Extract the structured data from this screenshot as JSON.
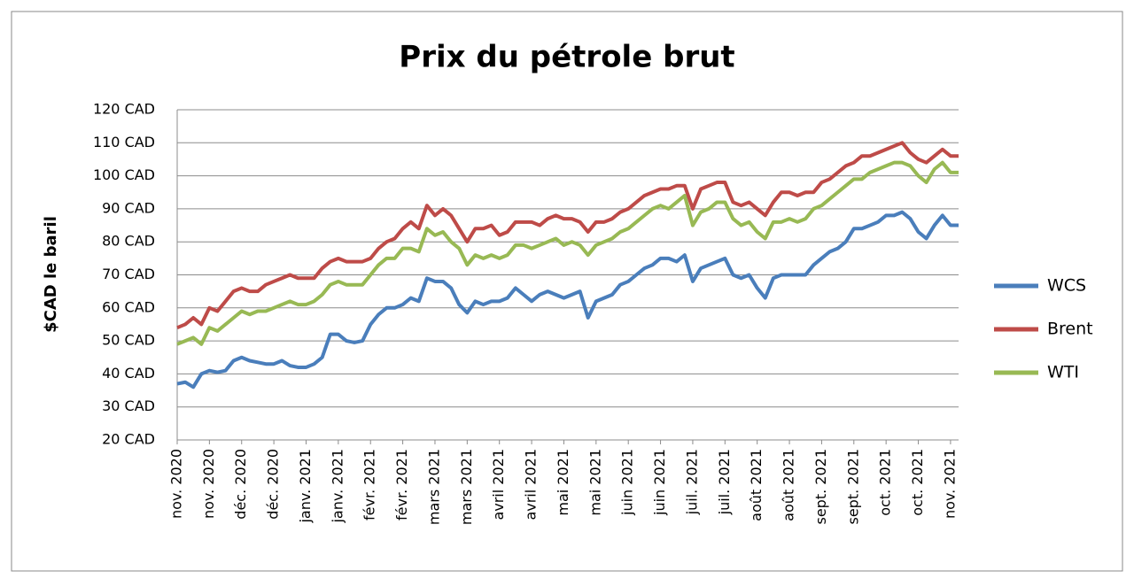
{
  "chart_data": {
    "type": "line",
    "title": "Prix du pétrole brut",
    "y_label": "$CAD le baril",
    "categories": [
      "nov. 2020",
      null,
      null,
      null,
      "nov. 2020",
      null,
      null,
      null,
      "déc. 2020",
      null,
      null,
      null,
      "déc. 2020",
      null,
      null,
      null,
      "janv. 2021",
      null,
      null,
      null,
      "janv. 2021",
      null,
      null,
      null,
      "févr. 2021",
      null,
      null,
      null,
      "févr. 2021",
      null,
      null,
      null,
      "mars 2021",
      null,
      null,
      null,
      "mars 2021",
      null,
      null,
      null,
      "avril 2021",
      null,
      null,
      null,
      "avril 2021",
      null,
      null,
      null,
      "mai 2021",
      null,
      null,
      null,
      "mai 2021",
      null,
      null,
      null,
      "juin 2021",
      null,
      null,
      null,
      "juin 2021",
      null,
      null,
      null,
      "juil. 2021",
      null,
      null,
      null,
      "juil. 2021",
      null,
      null,
      null,
      "août 2021",
      null,
      null,
      null,
      "août 2021",
      null,
      null,
      null,
      "sept. 2021",
      null,
      null,
      null,
      "sept. 2021",
      null,
      null,
      null,
      "oct. 2021",
      null,
      null,
      null,
      "oct. 2021",
      null,
      null,
      null,
      "nov. 2021",
      null
    ],
    "series": [
      {
        "name": "WCS",
        "color": "#4a7ebb",
        "values": [
          37,
          37.5,
          36,
          40,
          41,
          40.5,
          41,
          44,
          45,
          44,
          43.5,
          43,
          43,
          44,
          42.5,
          42,
          42,
          43,
          45,
          52,
          52,
          50,
          49.5,
          50,
          55,
          58,
          60,
          60,
          61,
          63,
          62,
          69,
          68,
          68,
          66,
          61,
          58.5,
          62,
          61,
          62,
          62,
          63,
          66,
          64,
          62,
          64,
          65,
          64,
          63,
          64,
          65,
          57,
          62,
          63,
          64,
          67,
          68,
          70,
          72,
          73,
          75,
          75,
          74,
          76,
          68,
          72,
          73,
          74,
          75,
          70,
          69,
          70,
          66,
          63,
          69,
          70,
          70,
          70,
          70,
          73,
          75,
          77,
          78,
          80,
          84,
          84,
          85,
          86,
          88,
          88,
          89,
          87,
          83,
          81,
          85,
          88,
          85,
          85
        ]
      },
      {
        "name": "Brent",
        "color": "#be4b48",
        "values": [
          54,
          55,
          57,
          55,
          60,
          59,
          62,
          65,
          66,
          65,
          65,
          67,
          68,
          69,
          70,
          69,
          69,
          69,
          72,
          74,
          75,
          74,
          74,
          74,
          75,
          78,
          80,
          81,
          84,
          86,
          84,
          91,
          88,
          90,
          88,
          84,
          80,
          84,
          84,
          85,
          82,
          83,
          86,
          86,
          86,
          85,
          87,
          88,
          87,
          87,
          86,
          83,
          86,
          86,
          87,
          89,
          90,
          92,
          94,
          95,
          96,
          96,
          97,
          97,
          90,
          96,
          97,
          98,
          98,
          92,
          91,
          92,
          90,
          88,
          92,
          95,
          95,
          94,
          95,
          95,
          98,
          99,
          101,
          103,
          104,
          106,
          106,
          107,
          108,
          109,
          110,
          107,
          105,
          104,
          106,
          108,
          106,
          106
        ]
      },
      {
        "name": "WTI",
        "color": "#98b954",
        "values": [
          49,
          50,
          51,
          49,
          54,
          53,
          55,
          57,
          59,
          58,
          59,
          59,
          60,
          61,
          62,
          61,
          61,
          62,
          64,
          67,
          68,
          67,
          67,
          67,
          70,
          73,
          75,
          75,
          78,
          78,
          77,
          84,
          82,
          83,
          80,
          78,
          73,
          76,
          75,
          76,
          75,
          76,
          79,
          79,
          78,
          79,
          80,
          81,
          79,
          80,
          79,
          76,
          79,
          80,
          81,
          83,
          84,
          86,
          88,
          90,
          91,
          90,
          92,
          94,
          85,
          89,
          90,
          92,
          92,
          87,
          85,
          86,
          83,
          81,
          86,
          86,
          87,
          86,
          87,
          90,
          91,
          93,
          95,
          97,
          99,
          99,
          101,
          102,
          103,
          104,
          104,
          103,
          100,
          98,
          102,
          104,
          101,
          101
        ]
      }
    ],
    "ylim": [
      20,
      120
    ],
    "yticks": [
      {
        "value": 20,
        "label": "20 CAD"
      },
      {
        "value": 30,
        "label": "30 CAD"
      },
      {
        "value": 40,
        "label": "40 CAD"
      },
      {
        "value": 50,
        "label": "50 CAD"
      },
      {
        "value": 60,
        "label": "60 CAD"
      },
      {
        "value": 70,
        "label": "70 CAD"
      },
      {
        "value": 80,
        "label": "80 CAD"
      },
      {
        "value": 90,
        "label": "90 CAD"
      },
      {
        "value": 100,
        "label": "100 CAD"
      },
      {
        "value": 110,
        "label": "110 CAD"
      },
      {
        "value": 120,
        "label": "120 CAD"
      }
    ],
    "grid": true,
    "legend": "right"
  }
}
